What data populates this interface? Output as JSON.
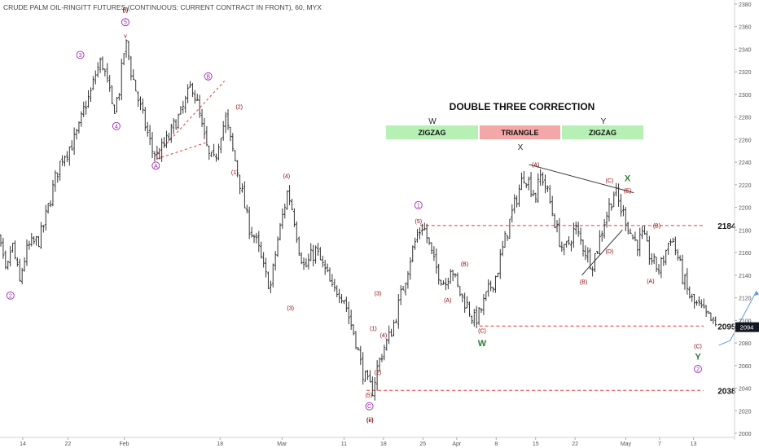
{
  "header": {
    "title": "CRUDE PALM OIL-RINGITT FUTURES (CONTINUOUS: CURRENT CONTRACT IN FRONT), 60, MYX"
  },
  "colors": {
    "bars": "#333333",
    "wave_purple": "#9c27b0",
    "wave_red": "#c62828",
    "wave_dark_red": "#8b0000",
    "wave_green": "#2e7d32",
    "level_line": "#e53935",
    "projection": "#5b9bd5",
    "price_tag_bg": "#131722",
    "zigzag_box": "#b6f0b4",
    "triangle_box": "#f4a7a7"
  },
  "chart_data": {
    "type": "bar",
    "subtype": "ohlc",
    "timeframe": "60",
    "y_axis": {
      "min": 2000,
      "max": 2380,
      "step": 20,
      "position": "right",
      "ticks": [
        "2380",
        "2360",
        "2340",
        "2320",
        "2300",
        "2280",
        "2260",
        "2240",
        "2220",
        "2200",
        "2180",
        "2160",
        "2140",
        "2120",
        "2100",
        "2080",
        "2060",
        "2040",
        "2020",
        "2000"
      ]
    },
    "x_axis": {
      "ticks": [
        {
          "label": "14",
          "d": 14
        },
        {
          "label": "22",
          "d": 22
        },
        {
          "label": "Feb",
          "d": 32
        },
        {
          "label": "18",
          "d": 49
        },
        {
          "label": "Mar",
          "d": 60
        },
        {
          "label": "11",
          "d": 71
        },
        {
          "label": "18",
          "d": 78
        },
        {
          "label": "25",
          "d": 85
        },
        {
          "label": "Apr",
          "d": 91
        },
        {
          "label": "8",
          "d": 98
        },
        {
          "label": "15",
          "d": 105
        },
        {
          "label": "22",
          "d": 112
        },
        {
          "label": "May",
          "d": 121
        },
        {
          "label": "7",
          "d": 127
        },
        {
          "label": "13",
          "d": 133
        }
      ]
    },
    "last_price": {
      "value": 2094,
      "label": "2094"
    },
    "path": [
      [
        8,
        2200
      ],
      [
        9,
        2185
      ],
      [
        10,
        2165
      ],
      [
        11,
        2140
      ],
      [
        11.5,
        2150
      ],
      [
        12,
        2170
      ],
      [
        13,
        2145
      ],
      [
        13.5,
        2132
      ],
      [
        14,
        2150
      ],
      [
        15,
        2165
      ],
      [
        17,
        2172
      ],
      [
        18,
        2190
      ],
      [
        19,
        2210
      ],
      [
        20,
        2230
      ],
      [
        21,
        2245
      ],
      [
        23,
        2258
      ],
      [
        24,
        2270
      ],
      [
        25,
        2290
      ],
      [
        26,
        2300
      ],
      [
        27,
        2320
      ],
      [
        28,
        2330
      ],
      [
        29,
        2310
      ],
      [
        30,
        2285
      ],
      [
        31,
        2300
      ],
      [
        31.5,
        2320
      ],
      [
        32,
        2340
      ],
      [
        32.5,
        2345
      ],
      [
        33,
        2325
      ],
      [
        34,
        2305
      ],
      [
        35,
        2285
      ],
      [
        36,
        2268
      ],
      [
        37,
        2250
      ],
      [
        38,
        2245
      ],
      [
        39,
        2255
      ],
      [
        40,
        2262
      ],
      [
        41,
        2275
      ],
      [
        42,
        2282
      ],
      [
        43,
        2295
      ],
      [
        44,
        2310
      ],
      [
        45,
        2290
      ],
      [
        46,
        2265
      ],
      [
        47,
        2245
      ],
      [
        48,
        2240
      ],
      [
        49,
        2265
      ],
      [
        50,
        2278
      ],
      [
        51,
        2255
      ],
      [
        52,
        2235
      ],
      [
        53,
        2210
      ],
      [
        54,
        2185
      ],
      [
        55,
        2175
      ],
      [
        56,
        2160
      ],
      [
        57,
        2140
      ],
      [
        58,
        2130
      ],
      [
        59,
        2165
      ],
      [
        60,
        2190
      ],
      [
        61,
        2215
      ],
      [
        62,
        2195
      ],
      [
        63,
        2165
      ],
      [
        64,
        2145
      ],
      [
        65,
        2155
      ],
      [
        66,
        2162
      ],
      [
        67,
        2150
      ],
      [
        68,
        2140
      ],
      [
        69,
        2125
      ],
      [
        70,
        2128
      ],
      [
        71,
        2120
      ],
      [
        72,
        2100
      ],
      [
        73,
        2085
      ],
      [
        74,
        2060
      ],
      [
        75,
        2045
      ],
      [
        76,
        2038
      ],
      [
        77,
        2060
      ],
      [
        78,
        2075
      ],
      [
        79,
        2085
      ],
      [
        80,
        2100
      ],
      [
        81,
        2120
      ],
      [
        82,
        2140
      ],
      [
        83,
        2160
      ],
      [
        84,
        2175
      ],
      [
        85,
        2185
      ],
      [
        86,
        2168
      ],
      [
        87,
        2150
      ],
      [
        88,
        2140
      ],
      [
        89,
        2132
      ],
      [
        90,
        2150
      ],
      [
        91,
        2130
      ],
      [
        92,
        2120
      ],
      [
        93,
        2112
      ],
      [
        94,
        2100
      ],
      [
        95,
        2105
      ],
      [
        96,
        2118
      ],
      [
        97,
        2130
      ],
      [
        98,
        2140
      ],
      [
        99,
        2160
      ],
      [
        100,
        2180
      ],
      [
        101,
        2198
      ],
      [
        102,
        2215
      ],
      [
        103,
        2230
      ],
      [
        104,
        2220
      ],
      [
        105,
        2210
      ],
      [
        106,
        2230
      ],
      [
        107,
        2215
      ],
      [
        108,
        2195
      ],
      [
        109,
        2175
      ],
      [
        110,
        2160
      ],
      [
        111,
        2170
      ],
      [
        112,
        2182
      ],
      [
        113,
        2170
      ],
      [
        114,
        2160
      ],
      [
        115,
        2150
      ],
      [
        116,
        2165
      ],
      [
        117,
        2185
      ],
      [
        118,
        2200
      ],
      [
        119,
        2215
      ],
      [
        120,
        2200
      ],
      [
        121,
        2190
      ],
      [
        122,
        2175
      ],
      [
        123,
        2168
      ],
      [
        124,
        2175
      ],
      [
        125,
        2160
      ],
      [
        126,
        2150
      ],
      [
        127,
        2145
      ],
      [
        128,
        2160
      ],
      [
        129,
        2175
      ],
      [
        130,
        2160
      ],
      [
        131,
        2140
      ],
      [
        132,
        2125
      ],
      [
        133,
        2115
      ],
      [
        134,
        2112
      ],
      [
        135,
        2105
      ],
      [
        136,
        2100
      ],
      [
        137,
        2094
      ]
    ],
    "levels": [
      {
        "label": "2184",
        "price": 2184
      },
      {
        "label": "2095",
        "price": 2095
      },
      {
        "label": "2038",
        "price": 2038
      }
    ],
    "annotations": {
      "title": "DOUBLE THREE CORRECTION",
      "w_letter": "W",
      "y_letter": "Y",
      "x_letter": "X",
      "boxes": [
        {
          "label": "ZIGZAG",
          "kind": "zigzag"
        },
        {
          "label": "TRIANGLE",
          "kind": "triangle"
        },
        {
          "label": "ZIGZAG",
          "kind": "zigzag"
        }
      ],
      "wave_labels": [
        {
          "text": "1",
          "circled": true,
          "color": "purple",
          "d": 8.2,
          "p": 2214
        },
        {
          "text": "2",
          "circled": true,
          "color": "purple",
          "d": 11.8,
          "p": 2122
        },
        {
          "text": "3",
          "circled": true,
          "color": "purple",
          "d": 24.2,
          "p": 2335
        },
        {
          "text": "4",
          "circled": true,
          "color": "purple",
          "d": 30.6,
          "p": 2272
        },
        {
          "text": "5",
          "circled": true,
          "color": "purple",
          "d": 32.2,
          "p": 2364
        },
        {
          "text": "(i)",
          "circled": false,
          "color": "darkred",
          "d": 32.2,
          "p": 2375
        },
        {
          "text": "v",
          "circled": false,
          "color": "darkred",
          "d": 32.2,
          "p": 2352
        },
        {
          "text": "B",
          "circled": true,
          "color": "purple",
          "d": 46.9,
          "p": 2316
        },
        {
          "text": "A",
          "circled": true,
          "color": "purple",
          "d": 37.6,
          "p": 2237
        },
        {
          "text": "(2)",
          "circled": false,
          "color": "darkred",
          "d": 52.4,
          "p": 2289
        },
        {
          "text": "(1)",
          "circled": false,
          "color": "darkred",
          "d": 51.6,
          "p": 2231
        },
        {
          "text": "(4)",
          "circled": false,
          "color": "darkred",
          "d": 60.8,
          "p": 2228
        },
        {
          "text": "(3)",
          "circled": false,
          "color": "darkred",
          "d": 61.5,
          "p": 2111
        },
        {
          "text": "(5)",
          "circled": false,
          "color": "darkred",
          "d": 75.4,
          "p": 2034
        },
        {
          "text": "C",
          "circled": true,
          "color": "purple",
          "d": 75.5,
          "p": 2024
        },
        {
          "text": "(ii)",
          "circled": false,
          "color": "darkred",
          "d": 75.6,
          "p": 2012
        },
        {
          "text": "(2)",
          "circled": false,
          "color": "darkred",
          "d": 77.0,
          "p": 2054
        },
        {
          "text": "(1)",
          "circled": false,
          "color": "darkred",
          "d": 76.2,
          "p": 2093
        },
        {
          "text": "(3)",
          "circled": false,
          "color": "darkred",
          "d": 77.0,
          "p": 2124
        },
        {
          "text": "(4)",
          "circled": false,
          "color": "darkred",
          "d": 78.0,
          "p": 2087
        },
        {
          "text": "1",
          "circled": true,
          "color": "purple",
          "d": 84.2,
          "p": 2202
        },
        {
          "text": "(5)",
          "circled": false,
          "color": "darkred",
          "d": 84.2,
          "p": 2188
        },
        {
          "text": "(B)",
          "circled": false,
          "color": "darkred",
          "d": 92.4,
          "p": 2150
        },
        {
          "text": "(A)",
          "circled": false,
          "color": "darkred",
          "d": 89.4,
          "p": 2118
        },
        {
          "text": "(C)",
          "circled": false,
          "color": "darkred",
          "d": 95.5,
          "p": 2091
        },
        {
          "text": "W",
          "circled": false,
          "color": "green",
          "d": 95.5,
          "p": 2080
        },
        {
          "text": "(A)",
          "circled": false,
          "color": "darkred",
          "d": 105.0,
          "p": 2238
        },
        {
          "text": "(C)",
          "circled": false,
          "color": "darkred",
          "d": 118.1,
          "p": 2224
        },
        {
          "text": "X",
          "circled": false,
          "color": "green",
          "d": 121.3,
          "p": 2226
        },
        {
          "text": "(E)",
          "circled": false,
          "color": "darkred",
          "d": 121.3,
          "p": 2215
        },
        {
          "text": "(B)",
          "circled": false,
          "color": "darkred",
          "d": 126.5,
          "p": 2184
        },
        {
          "text": "(D)",
          "circled": false,
          "color": "darkred",
          "d": 118.1,
          "p": 2161
        },
        {
          "text": "(B)",
          "circled": false,
          "color": "darkred",
          "d": 113.5,
          "p": 2134
        },
        {
          "text": "(A)",
          "circled": false,
          "color": "darkred",
          "d": 125.4,
          "p": 2135
        },
        {
          "text": "(C)",
          "circled": false,
          "color": "darkred",
          "d": 133.8,
          "p": 2077
        },
        {
          "text": "Y",
          "circled": false,
          "color": "green",
          "d": 133.8,
          "p": 2068
        },
        {
          "text": "2",
          "circled": true,
          "color": "purple",
          "d": 133.8,
          "p": 2057
        }
      ]
    }
  }
}
